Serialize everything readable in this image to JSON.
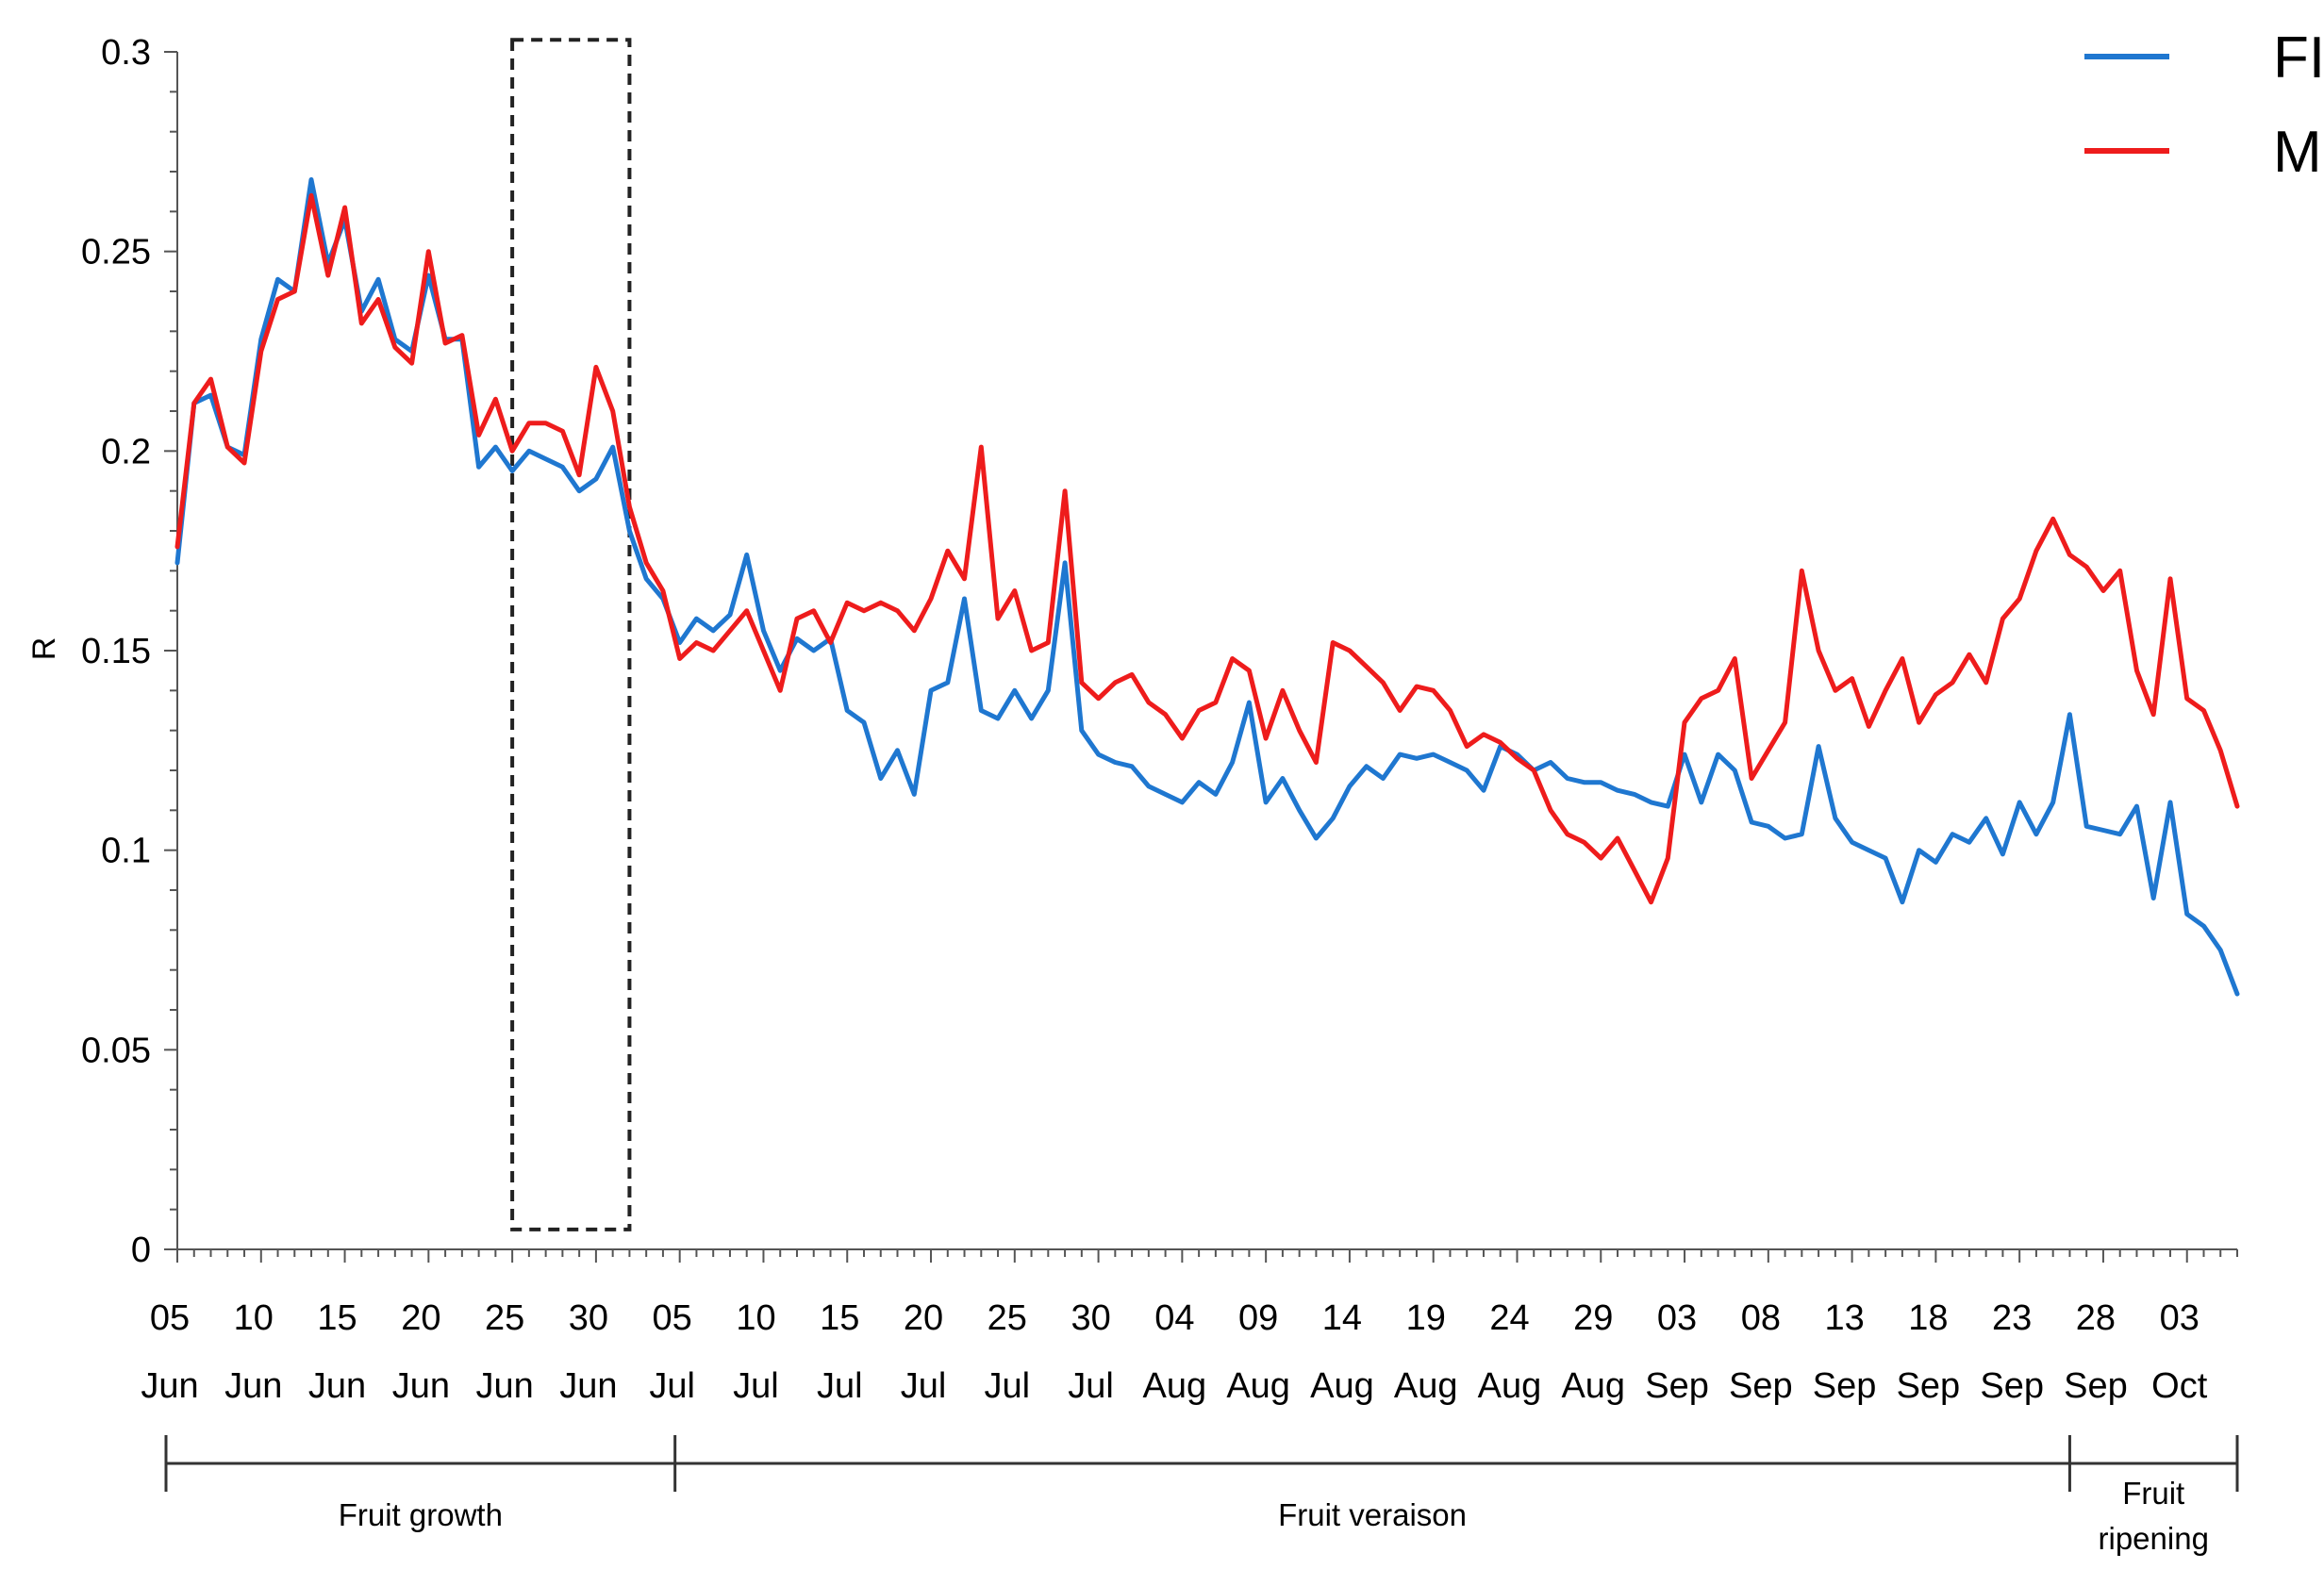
{
  "chart_data": {
    "type": "line",
    "ylabel": "R",
    "xlabel": "",
    "ylim": [
      0,
      0.3
    ],
    "yticks": [
      "0",
      "0.05",
      "0.1",
      "0.15",
      "0.2",
      "0.25",
      "0.3"
    ],
    "xticks": [
      {
        "day": "05",
        "month": "Jun"
      },
      {
        "day": "10",
        "month": "Jun"
      },
      {
        "day": "15",
        "month": "Jun"
      },
      {
        "day": "20",
        "month": "Jun"
      },
      {
        "day": "25",
        "month": "Jun"
      },
      {
        "day": "30",
        "month": "Jun"
      },
      {
        "day": "05",
        "month": "Jul"
      },
      {
        "day": "10",
        "month": "Jul"
      },
      {
        "day": "15",
        "month": "Jul"
      },
      {
        "day": "20",
        "month": "Jul"
      },
      {
        "day": "25",
        "month": "Jul"
      },
      {
        "day": "30",
        "month": "Jul"
      },
      {
        "day": "04",
        "month": "Aug"
      },
      {
        "day": "09",
        "month": "Aug"
      },
      {
        "day": "14",
        "month": "Aug"
      },
      {
        "day": "19",
        "month": "Aug"
      },
      {
        "day": "24",
        "month": "Aug"
      },
      {
        "day": "29",
        "month": "Aug"
      },
      {
        "day": "03",
        "month": "Sep"
      },
      {
        "day": "08",
        "month": "Sep"
      },
      {
        "day": "13",
        "month": "Sep"
      },
      {
        "day": "18",
        "month": "Sep"
      },
      {
        "day": "23",
        "month": "Sep"
      },
      {
        "day": "28",
        "month": "Sep"
      },
      {
        "day": "03",
        "month": "Oct"
      }
    ],
    "x_start": "2000-06-05",
    "x_end": "2000-10-06",
    "legend_position": "top-right",
    "grid": false,
    "series": [
      {
        "name": "FI",
        "color": "#1f77d0",
        "points": [
          [
            "2000-06-05",
            0.172
          ],
          [
            "2000-06-06",
            0.212
          ],
          [
            "2000-06-07",
            0.214
          ],
          [
            "2000-06-08",
            0.201
          ],
          [
            "2000-06-09",
            0.199
          ],
          [
            "2000-06-10",
            0.228
          ],
          [
            "2000-06-11",
            0.243
          ],
          [
            "2000-06-12",
            0.24
          ],
          [
            "2000-06-13",
            0.268
          ],
          [
            "2000-06-14",
            0.247
          ],
          [
            "2000-06-15",
            0.258
          ],
          [
            "2000-06-16",
            0.235
          ],
          [
            "2000-06-17",
            0.243
          ],
          [
            "2000-06-18",
            0.228
          ],
          [
            "2000-06-19",
            0.225
          ],
          [
            "2000-06-20",
            0.244
          ],
          [
            "2000-06-21",
            0.228
          ],
          [
            "2000-06-22",
            0.228
          ],
          [
            "2000-06-23",
            0.196
          ],
          [
            "2000-06-24",
            0.201
          ],
          [
            "2000-06-25",
            0.195
          ],
          [
            "2000-06-26",
            0.2
          ],
          [
            "2000-06-27",
            0.198
          ],
          [
            "2000-06-28",
            0.196
          ],
          [
            "2000-06-29",
            0.19
          ],
          [
            "2000-06-30",
            0.193
          ],
          [
            "2000-07-01",
            0.201
          ],
          [
            "2000-07-02",
            0.18
          ],
          [
            "2000-07-03",
            0.168
          ],
          [
            "2000-07-04",
            0.163
          ],
          [
            "2000-07-05",
            0.152
          ],
          [
            "2000-07-06",
            0.158
          ],
          [
            "2000-07-07",
            0.155
          ],
          [
            "2000-07-08",
            0.159
          ],
          [
            "2000-07-09",
            0.174
          ],
          [
            "2000-07-10",
            0.155
          ],
          [
            "2000-07-11",
            0.145
          ],
          [
            "2000-07-12",
            0.153
          ],
          [
            "2000-07-13",
            0.15
          ],
          [
            "2000-07-14",
            0.153
          ],
          [
            "2000-07-15",
            0.135
          ],
          [
            "2000-07-16",
            0.132
          ],
          [
            "2000-07-17",
            0.118
          ],
          [
            "2000-07-18",
            0.125
          ],
          [
            "2000-07-19",
            0.114
          ],
          [
            "2000-07-20",
            0.14
          ],
          [
            "2000-07-21",
            0.142
          ],
          [
            "2000-07-22",
            0.163
          ],
          [
            "2000-07-23",
            0.135
          ],
          [
            "2000-07-24",
            0.133
          ],
          [
            "2000-07-25",
            0.14
          ],
          [
            "2000-07-26",
            0.133
          ],
          [
            "2000-07-27",
            0.14
          ],
          [
            "2000-07-28",
            0.172
          ],
          [
            "2000-07-29",
            0.13
          ],
          [
            "2000-07-30",
            0.124
          ],
          [
            "2000-07-31",
            0.122
          ],
          [
            "2000-08-01",
            0.121
          ],
          [
            "2000-08-02",
            0.116
          ],
          [
            "2000-08-03",
            0.114
          ],
          [
            "2000-08-04",
            0.112
          ],
          [
            "2000-08-05",
            0.117
          ],
          [
            "2000-08-06",
            0.114
          ],
          [
            "2000-08-07",
            0.122
          ],
          [
            "2000-08-08",
            0.137
          ],
          [
            "2000-08-09",
            0.112
          ],
          [
            "2000-08-10",
            0.118
          ],
          [
            "2000-08-11",
            0.11
          ],
          [
            "2000-08-12",
            0.103
          ],
          [
            "2000-08-13",
            0.108
          ],
          [
            "2000-08-14",
            0.116
          ],
          [
            "2000-08-15",
            0.121
          ],
          [
            "2000-08-16",
            0.118
          ],
          [
            "2000-08-17",
            0.124
          ],
          [
            "2000-08-18",
            0.123
          ],
          [
            "2000-08-19",
            0.124
          ],
          [
            "2000-08-20",
            0.122
          ],
          [
            "2000-08-21",
            0.12
          ],
          [
            "2000-08-22",
            0.115
          ],
          [
            "2000-08-23",
            0.126
          ],
          [
            "2000-08-24",
            0.124
          ],
          [
            "2000-08-25",
            0.12
          ],
          [
            "2000-08-26",
            0.122
          ],
          [
            "2000-08-27",
            0.118
          ],
          [
            "2000-08-28",
            0.117
          ],
          [
            "2000-08-29",
            0.117
          ],
          [
            "2000-08-30",
            0.115
          ],
          [
            "2000-08-31",
            0.114
          ],
          [
            "2000-09-01",
            0.112
          ],
          [
            "2000-09-02",
            0.111
          ],
          [
            "2000-09-03",
            0.124
          ],
          [
            "2000-09-04",
            0.112
          ],
          [
            "2000-09-05",
            0.124
          ],
          [
            "2000-09-06",
            0.12
          ],
          [
            "2000-09-07",
            0.107
          ],
          [
            "2000-09-08",
            0.106
          ],
          [
            "2000-09-09",
            0.103
          ],
          [
            "2000-09-10",
            0.104
          ],
          [
            "2000-09-11",
            0.126
          ],
          [
            "2000-09-12",
            0.108
          ],
          [
            "2000-09-13",
            0.102
          ],
          [
            "2000-09-14",
            0.1
          ],
          [
            "2000-09-15",
            0.098
          ],
          [
            "2000-09-16",
            0.087
          ],
          [
            "2000-09-17",
            0.1
          ],
          [
            "2000-09-18",
            0.097
          ],
          [
            "2000-09-19",
            0.104
          ],
          [
            "2000-09-20",
            0.102
          ],
          [
            "2000-09-21",
            0.108
          ],
          [
            "2000-09-22",
            0.099
          ],
          [
            "2000-09-23",
            0.112
          ],
          [
            "2000-09-24",
            0.104
          ],
          [
            "2000-09-25",
            0.112
          ],
          [
            "2000-09-26",
            0.134
          ],
          [
            "2000-09-27",
            0.106
          ],
          [
            "2000-09-28",
            0.105
          ],
          [
            "2000-09-29",
            0.104
          ],
          [
            "2000-09-30",
            0.111
          ],
          [
            "2000-10-01",
            0.088
          ],
          [
            "2000-10-02",
            0.112
          ],
          [
            "2000-10-03",
            0.084
          ],
          [
            "2000-10-04",
            0.081
          ],
          [
            "2000-10-05",
            0.075
          ],
          [
            "2000-10-06",
            0.064
          ]
        ]
      },
      {
        "name": "MI",
        "color": "#ee1c1c",
        "points": [
          [
            "2000-06-05",
            0.176
          ],
          [
            "2000-06-06",
            0.212
          ],
          [
            "2000-06-07",
            0.218
          ],
          [
            "2000-06-08",
            0.201
          ],
          [
            "2000-06-09",
            0.197
          ],
          [
            "2000-06-10",
            0.225
          ],
          [
            "2000-06-11",
            0.238
          ],
          [
            "2000-06-12",
            0.24
          ],
          [
            "2000-06-13",
            0.264
          ],
          [
            "2000-06-14",
            0.244
          ],
          [
            "2000-06-15",
            0.261
          ],
          [
            "2000-06-16",
            0.232
          ],
          [
            "2000-06-17",
            0.238
          ],
          [
            "2000-06-18",
            0.226
          ],
          [
            "2000-06-19",
            0.222
          ],
          [
            "2000-06-20",
            0.25
          ],
          [
            "2000-06-21",
            0.227
          ],
          [
            "2000-06-22",
            0.229
          ],
          [
            "2000-06-23",
            0.204
          ],
          [
            "2000-06-24",
            0.213
          ],
          [
            "2000-06-25",
            0.2
          ],
          [
            "2000-06-26",
            0.207
          ],
          [
            "2000-06-27",
            0.207
          ],
          [
            "2000-06-28",
            0.205
          ],
          [
            "2000-06-29",
            0.194
          ],
          [
            "2000-06-30",
            0.221
          ],
          [
            "2000-07-01",
            0.21
          ],
          [
            "2000-07-02",
            0.186
          ],
          [
            "2000-07-03",
            0.172
          ],
          [
            "2000-07-04",
            0.165
          ],
          [
            "2000-07-05",
            0.148
          ],
          [
            "2000-07-06",
            0.152
          ],
          [
            "2000-07-07",
            0.15
          ],
          [
            "2000-07-08",
            0.155
          ],
          [
            "2000-07-09",
            0.16
          ],
          [
            "2000-07-10",
            0.15
          ],
          [
            "2000-07-11",
            0.14
          ],
          [
            "2000-07-12",
            0.158
          ],
          [
            "2000-07-13",
            0.16
          ],
          [
            "2000-07-14",
            0.152
          ],
          [
            "2000-07-15",
            0.162
          ],
          [
            "2000-07-16",
            0.16
          ],
          [
            "2000-07-17",
            0.162
          ],
          [
            "2000-07-18",
            0.16
          ],
          [
            "2000-07-19",
            0.155
          ],
          [
            "2000-07-20",
            0.163
          ],
          [
            "2000-07-21",
            0.175
          ],
          [
            "2000-07-22",
            0.168
          ],
          [
            "2000-07-23",
            0.201
          ],
          [
            "2000-07-24",
            0.158
          ],
          [
            "2000-07-25",
            0.165
          ],
          [
            "2000-07-26",
            0.15
          ],
          [
            "2000-07-27",
            0.152
          ],
          [
            "2000-07-28",
            0.19
          ],
          [
            "2000-07-29",
            0.142
          ],
          [
            "2000-07-30",
            0.138
          ],
          [
            "2000-07-31",
            0.142
          ],
          [
            "2000-08-01",
            0.144
          ],
          [
            "2000-08-02",
            0.137
          ],
          [
            "2000-08-03",
            0.134
          ],
          [
            "2000-08-04",
            0.128
          ],
          [
            "2000-08-05",
            0.135
          ],
          [
            "2000-08-06",
            0.137
          ],
          [
            "2000-08-07",
            0.148
          ],
          [
            "2000-08-08",
            0.145
          ],
          [
            "2000-08-09",
            0.128
          ],
          [
            "2000-08-10",
            0.14
          ],
          [
            "2000-08-11",
            0.13
          ],
          [
            "2000-08-12",
            0.122
          ],
          [
            "2000-08-13",
            0.152
          ],
          [
            "2000-08-14",
            0.15
          ],
          [
            "2000-08-15",
            0.146
          ],
          [
            "2000-08-16",
            0.142
          ],
          [
            "2000-08-17",
            0.135
          ],
          [
            "2000-08-18",
            0.141
          ],
          [
            "2000-08-19",
            0.14
          ],
          [
            "2000-08-20",
            0.135
          ],
          [
            "2000-08-21",
            0.126
          ],
          [
            "2000-08-22",
            0.129
          ],
          [
            "2000-08-23",
            0.127
          ],
          [
            "2000-08-24",
            0.123
          ],
          [
            "2000-08-25",
            0.12
          ],
          [
            "2000-08-26",
            0.11
          ],
          [
            "2000-08-27",
            0.104
          ],
          [
            "2000-08-28",
            0.102
          ],
          [
            "2000-08-29",
            0.098
          ],
          [
            "2000-08-30",
            0.103
          ],
          [
            "2000-08-31",
            0.095
          ],
          [
            "2000-09-01",
            0.087
          ],
          [
            "2000-09-02",
            0.098
          ],
          [
            "2000-09-03",
            0.132
          ],
          [
            "2000-09-04",
            0.138
          ],
          [
            "2000-09-05",
            0.14
          ],
          [
            "2000-09-06",
            0.148
          ],
          [
            "2000-09-07",
            0.118
          ],
          [
            "2000-09-08",
            0.125
          ],
          [
            "2000-09-09",
            0.132
          ],
          [
            "2000-09-10",
            0.17
          ],
          [
            "2000-09-11",
            0.15
          ],
          [
            "2000-09-12",
            0.14
          ],
          [
            "2000-09-13",
            0.143
          ],
          [
            "2000-09-14",
            0.131
          ],
          [
            "2000-09-15",
            0.14
          ],
          [
            "2000-09-16",
            0.148
          ],
          [
            "2000-09-17",
            0.132
          ],
          [
            "2000-09-18",
            0.139
          ],
          [
            "2000-09-19",
            0.142
          ],
          [
            "2000-09-20",
            0.149
          ],
          [
            "2000-09-21",
            0.142
          ],
          [
            "2000-09-22",
            0.158
          ],
          [
            "2000-09-23",
            0.163
          ],
          [
            "2000-09-24",
            0.175
          ],
          [
            "2000-09-25",
            0.183
          ],
          [
            "2000-09-26",
            0.174
          ],
          [
            "2000-09-27",
            0.171
          ],
          [
            "2000-09-28",
            0.165
          ],
          [
            "2000-09-29",
            0.17
          ],
          [
            "2000-09-30",
            0.145
          ],
          [
            "2000-10-01",
            0.134
          ],
          [
            "2000-10-02",
            0.168
          ],
          [
            "2000-10-03",
            0.138
          ],
          [
            "2000-10-04",
            0.135
          ],
          [
            "2000-10-05",
            0.125
          ],
          [
            "2000-10-06",
            0.111
          ]
        ]
      }
    ],
    "highlight_box": {
      "x_from": "2000-06-25",
      "x_to": "2000-07-02",
      "y_from": 0.005,
      "y_to": 0.303,
      "style": "dashed"
    },
    "stages": [
      {
        "label": "Fruit growth",
        "x_from": "2000-06-05",
        "x_to": "2000-07-05"
      },
      {
        "label": "Fruit veraison",
        "x_from": "2000-07-05",
        "x_to": "2000-09-26"
      },
      {
        "label": "Fruit\nripening",
        "x_from": "2000-09-26",
        "x_to": "2000-10-06"
      }
    ]
  }
}
